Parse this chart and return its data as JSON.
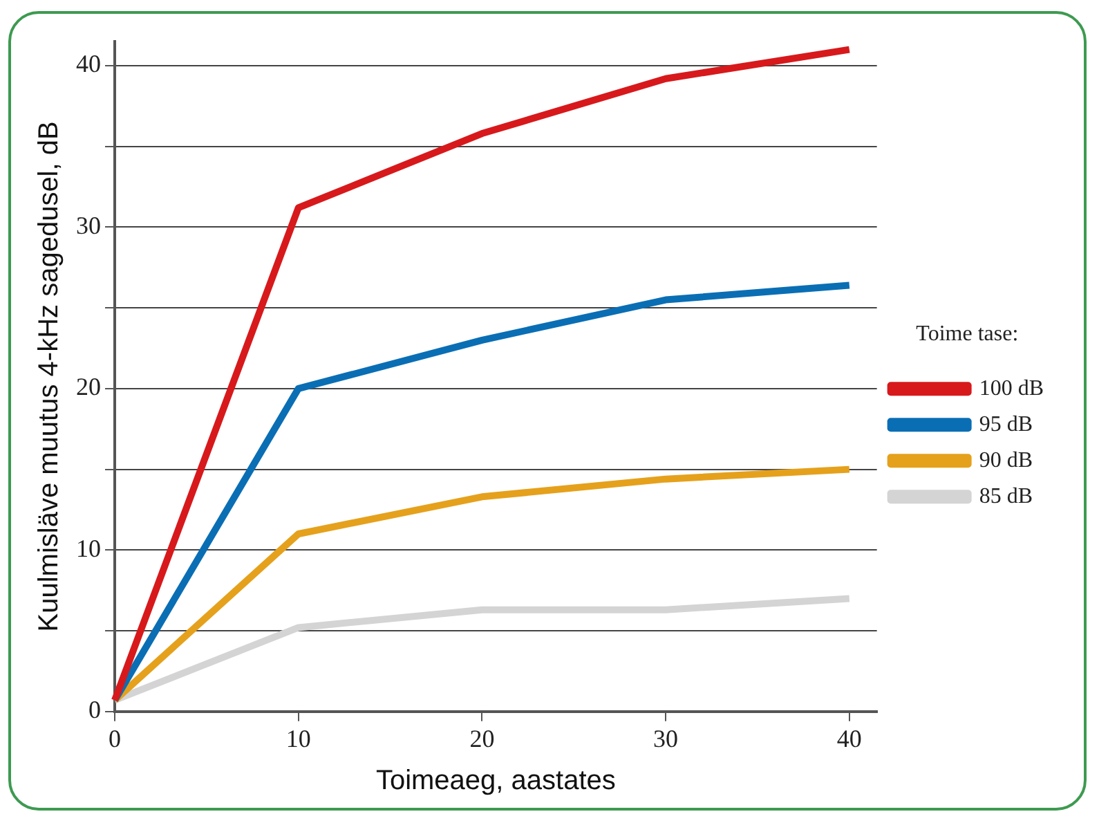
{
  "chart_data": {
    "type": "line",
    "xlabel": "Toimeaeg, aastates",
    "ylabel": "Kuulmisläve muutus 4-kHz sagedusel, dB",
    "legend_title": "Toime tase:",
    "x": [
      0,
      10,
      20,
      30,
      40
    ],
    "series": [
      {
        "name": "100 dB",
        "color": "#d7191c",
        "values": [
          0.7,
          31.2,
          35.8,
          39.2,
          41.0
        ]
      },
      {
        "name": "95 dB",
        "color": "#0a6eb4",
        "values": [
          0.7,
          20.0,
          23.0,
          25.5,
          26.4
        ]
      },
      {
        "name": "90 dB",
        "color": "#e5a11c",
        "values": [
          0.7,
          11.0,
          13.3,
          14.4,
          15.0
        ]
      },
      {
        "name": "85 dB",
        "color": "#d4d4d4",
        "values": [
          0.7,
          5.2,
          6.3,
          6.3,
          7.0
        ]
      }
    ],
    "xlim": [
      0,
      41.5
    ],
    "xticks": [
      0,
      10,
      20,
      30,
      40
    ],
    "ylim": [
      0,
      41.5
    ],
    "yticks": [
      0,
      {
        "value": 5,
        "label": null
      },
      10,
      {
        "value": 15,
        "label": null
      },
      20,
      {
        "value": 25,
        "label": null
      },
      30,
      {
        "value": 35,
        "label": null
      },
      40
    ],
    "grid": "y",
    "legend": "right",
    "marker": "none",
    "line_style": "solid"
  }
}
